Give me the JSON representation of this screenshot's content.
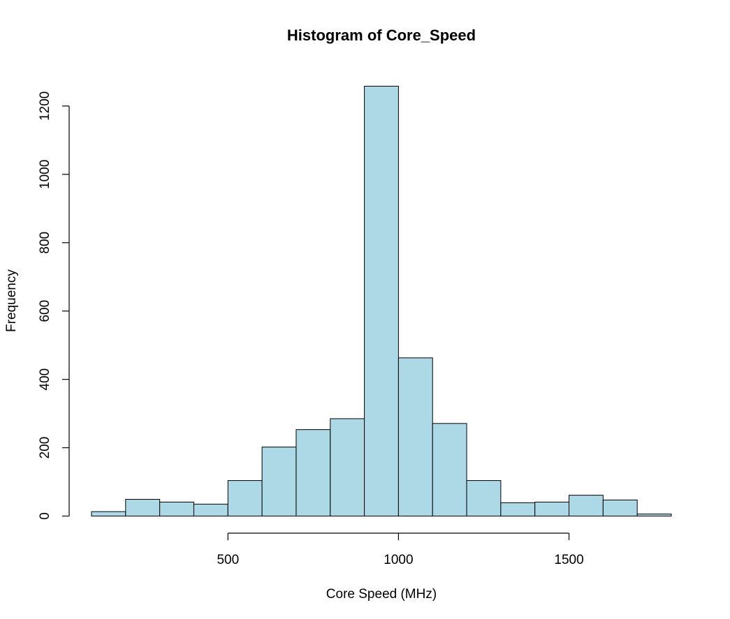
{
  "chart_data": {
    "type": "bar",
    "title": "Histogram of Core_Speed",
    "xlabel": "Core Speed (MHz)",
    "ylabel": "Frequency",
    "bin_edges": [
      100,
      200,
      300,
      400,
      500,
      600,
      700,
      800,
      900,
      1000,
      1100,
      1200,
      1300,
      1400,
      1500,
      1600,
      1700,
      1800
    ],
    "values": [
      13,
      49,
      41,
      35,
      104,
      202,
      253,
      285,
      1258,
      463,
      271,
      104,
      39,
      41,
      61,
      47,
      6
    ],
    "xlim": [
      100,
      1800
    ],
    "ylim": [
      0,
      1258
    ],
    "x_ticks": [
      500,
      1000,
      1500
    ],
    "y_ticks": [
      0,
      200,
      400,
      600,
      800,
      1000,
      1200
    ],
    "grid": false,
    "bar_color": "#add8e6"
  }
}
